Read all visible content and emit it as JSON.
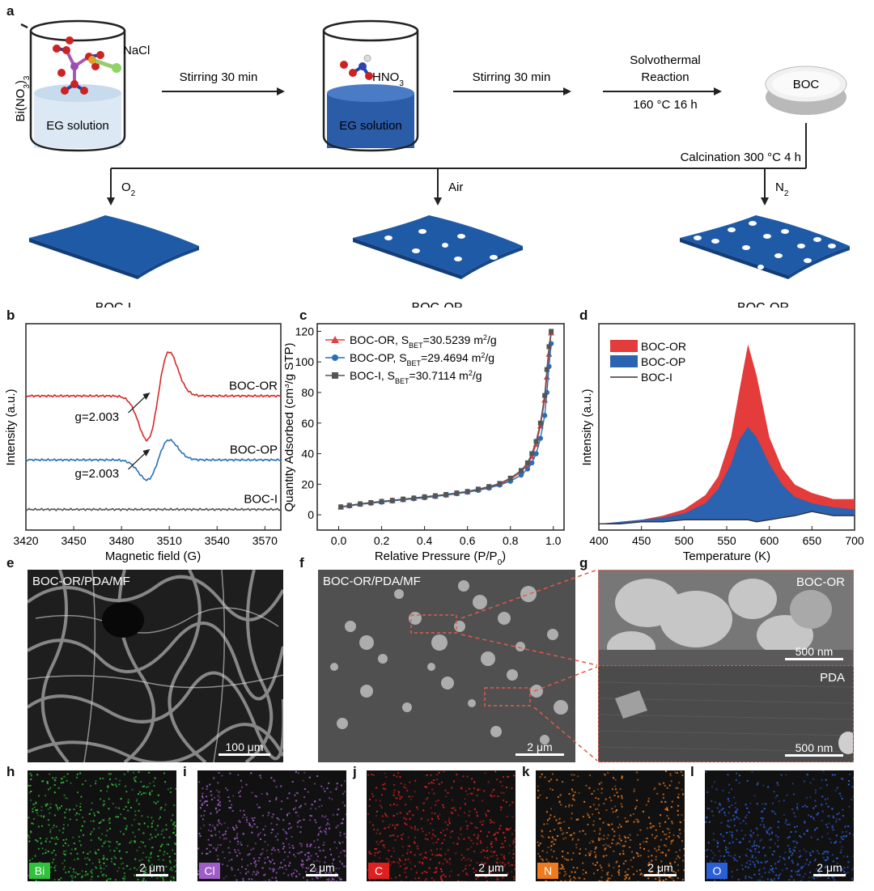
{
  "panels": {
    "a": {
      "label": "a",
      "precursor": "Bi(NO3)3",
      "precursor_sub": "3",
      "precursor_sub2": "3",
      "salt": "NaCl",
      "acid": "HNO",
      "acid_sub": "3",
      "beaker1_label": "EG solution",
      "beaker2_label": "EG solution",
      "step1": "Stirring 30 min",
      "step2": "Stirring 30 min",
      "step3_line1": "Solvothermal",
      "step3_line2": "Reaction",
      "step3_line3": "160 °C 16 h",
      "product": "BOC",
      "calcination": "Calcination 300 °C 4 h",
      "atm1": "O",
      "atm1_sub": "2",
      "atm2": "Air",
      "atm3": "N",
      "atm3_sub": "2",
      "sheet1": "BOC-I",
      "sheet2": "BOC-OP",
      "sheet3": "BOC-OR",
      "colors": {
        "sheet": "#1f5aa6",
        "solution": "#2b5ca8"
      }
    },
    "b": {
      "label": "b"
    },
    "c": {
      "label": "c"
    },
    "d": {
      "label": "d"
    },
    "e": {
      "label": "e",
      "sample": "BOC-OR/PDA/MF",
      "scale": "100 μm"
    },
    "f": {
      "label": "f",
      "sample": "BOC-OR/PDA/MF",
      "scale": "2 μm"
    },
    "g": {
      "label": "g",
      "top_label": "BOC-OR",
      "top_scale": "500 nm",
      "bottom_label": "PDA",
      "bottom_scale": "500 nm"
    },
    "maps": [
      {
        "label": "h",
        "element": "Bi",
        "scale": "2 μm",
        "color": "#2fc23a"
      },
      {
        "label": "i",
        "element": "Cl",
        "scale": "2 μm",
        "color": "#a05cc8"
      },
      {
        "label": "j",
        "element": "C",
        "scale": "2 μm",
        "color": "#e02020"
      },
      {
        "label": "k",
        "element": "N",
        "scale": "2 μm",
        "color": "#f07a1e"
      },
      {
        "label": "l",
        "element": "O",
        "scale": "2 μm",
        "color": "#2a5fd8"
      }
    ]
  },
  "chart_data": [
    {
      "type": "line",
      "panel": "b",
      "xlabel": "Magnetic field (G)",
      "ylabel": "Intensity (a.u.)",
      "xlim": [
        3420,
        3580
      ],
      "xticks": [
        3420,
        3450,
        3480,
        3510,
        3540,
        3570
      ],
      "series": [
        {
          "name": "BOC-OR",
          "color": "#d62828",
          "baseline": 0.65,
          "amplitude": 0.22,
          "annotation": "g=2.003",
          "center": 3503
        },
        {
          "name": "BOC-OP",
          "color": "#2a6fb5",
          "baseline": 0.34,
          "amplitude": 0.1,
          "annotation": "g=2.003",
          "center": 3503
        },
        {
          "name": "BOC-I",
          "color": "#555555",
          "baseline": 0.1,
          "amplitude": 0.0
        }
      ]
    },
    {
      "type": "line",
      "panel": "c",
      "xlabel": "Relative Pressure (P/P",
      "xlabel_sub": "0",
      "xlabel_end": ")",
      "ylabel": "Quantity Adsorbed (cm",
      "ylabel_sup": "3",
      "ylabel_end": "/g STP)",
      "xlim": [
        -0.1,
        1.05
      ],
      "ylim": [
        -10,
        125
      ],
      "xticks": [
        0.0,
        0.2,
        0.4,
        0.6,
        0.8,
        1.0
      ],
      "yticks": [
        0,
        20,
        40,
        60,
        80,
        100,
        120
      ],
      "legend": [
        {
          "name": "BOC-OR",
          "sbet_prefix": ", S",
          "sbet_sub": "BET",
          "sbet_value": "=30.5239 m",
          "unit_sup": "2",
          "unit_end": "/g",
          "color": "#e04040",
          "marker": "triangle"
        },
        {
          "name": "BOC-OP",
          "sbet_prefix": ", S",
          "sbet_sub": "BET",
          "sbet_value": "=29.4694 m",
          "unit_sup": "2",
          "unit_end": "/g",
          "color": "#2a6fb5",
          "marker": "circle"
        },
        {
          "name": "BOC-I",
          "sbet_prefix": ", S",
          "sbet_sub": "BET",
          "sbet_value": "=30.7114 m",
          "unit_sup": "2",
          "unit_end": "/g",
          "color": "#555555",
          "marker": "square"
        }
      ],
      "x": [
        0.01,
        0.05,
        0.1,
        0.15,
        0.2,
        0.25,
        0.3,
        0.35,
        0.4,
        0.45,
        0.5,
        0.55,
        0.6,
        0.65,
        0.7,
        0.75,
        0.8,
        0.85,
        0.88,
        0.9,
        0.92,
        0.94,
        0.96,
        0.97,
        0.98,
        0.99
      ],
      "series_values": {
        "BOC-OR": [
          5,
          6,
          7,
          7.8,
          8.5,
          9.2,
          10,
          10.8,
          11.5,
          12.2,
          13,
          14,
          15,
          16.5,
          18,
          20,
          23,
          28,
          33,
          38,
          46,
          58,
          75,
          90,
          105,
          119
        ],
        "BOC-OP": [
          5,
          5.8,
          6.8,
          7.6,
          8.3,
          9,
          9.8,
          10.5,
          11.2,
          12,
          12.8,
          13.8,
          14.8,
          16,
          17.5,
          19.5,
          22,
          26,
          30,
          34,
          40,
          50,
          65,
          80,
          97,
          112
        ],
        "BOC-I": [
          5.2,
          6.2,
          7.2,
          8,
          8.8,
          9.5,
          10.3,
          11,
          11.8,
          12.5,
          13.3,
          14.3,
          15.3,
          16.8,
          18.5,
          20.5,
          24,
          29,
          34,
          40,
          48,
          60,
          78,
          95,
          110,
          120
        ]
      }
    },
    {
      "type": "area",
      "panel": "d",
      "xlabel": "Temperature (K)",
      "ylabel": "Intensity (a.u.)",
      "xlim": [
        400,
        700
      ],
      "xticks": [
        400,
        450,
        500,
        550,
        600,
        650,
        700
      ],
      "legend": [
        {
          "name": "BOC-OR",
          "color": "#e43b3b"
        },
        {
          "name": "BOC-OP",
          "color": "#2b63b0"
        },
        {
          "name": "BOC-I",
          "color": "#333333"
        }
      ],
      "x": [
        400,
        425,
        450,
        475,
        500,
        525,
        540,
        555,
        565,
        575,
        585,
        600,
        615,
        630,
        650,
        675,
        700
      ],
      "series_values": {
        "BOC-OR": [
          0.03,
          0.04,
          0.05,
          0.07,
          0.1,
          0.17,
          0.26,
          0.45,
          0.68,
          0.9,
          0.75,
          0.45,
          0.3,
          0.22,
          0.18,
          0.15,
          0.15
        ],
        "BOC-OP": [
          0.03,
          0.04,
          0.05,
          0.06,
          0.08,
          0.13,
          0.2,
          0.32,
          0.44,
          0.5,
          0.45,
          0.32,
          0.22,
          0.16,
          0.13,
          0.11,
          0.1
        ],
        "BOC-I": [
          0.03,
          0.03,
          0.04,
          0.04,
          0.05,
          0.05,
          0.05,
          0.05,
          0.05,
          0.05,
          0.04,
          0.05,
          0.06,
          0.07,
          0.09,
          0.07,
          0.07
        ]
      }
    }
  ]
}
